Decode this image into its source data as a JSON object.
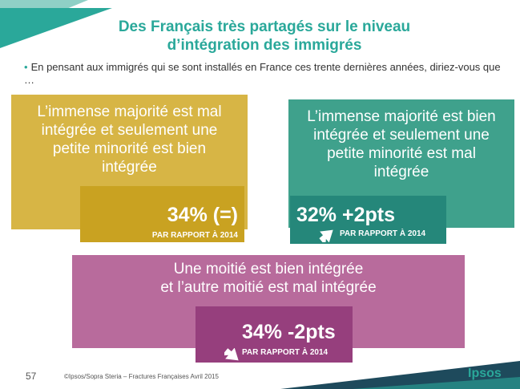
{
  "slide": {
    "title_line1": "Des Français très partagés sur le niveau",
    "title_line2": "d’intégration des immigrés",
    "question": "En pensant aux immigrés qui se sont installés en France ces trente dernières années, diriez-vous que …",
    "colors": {
      "teal": "#2aa89a",
      "yellow": "#d7b545",
      "yellow_dark": "#c9a221",
      "green": "#3fa18c",
      "green_dark": "#25877a",
      "pink": "#b86b9c",
      "pink_dark": "#963f7d"
    }
  },
  "panels": [
    {
      "lines": [
        "L’immense majorité est mal",
        "intégrée et seulement une",
        "petite minorité est bien",
        "intégrée"
      ],
      "value": "34% (=)",
      "note": "PAR RAPPORT À 2014",
      "value_percent": 34
    },
    {
      "lines": [
        "L’immense majorité est bien",
        "intégrée et seulement une",
        "petite minorité est mal",
        "intégrée"
      ],
      "value": "32% +2pts",
      "note": "PAR RAPPORT À 2014",
      "value_percent": 32,
      "trend_icon": "arrow-up-icon"
    },
    {
      "lines": [
        "Une moitié est bien intégrée",
        "et l’autre moitié est mal intégrée"
      ],
      "value": "34% -2pts",
      "note": "PAR RAPPORT À 2014",
      "value_percent": 34,
      "trend_icon": "arrow-down-icon"
    }
  ],
  "footer": {
    "page": "57",
    "source": "©Ipsos/Sopra Steria –  Fractures Françaises  Avril 2015",
    "logo": "Ipsos"
  }
}
